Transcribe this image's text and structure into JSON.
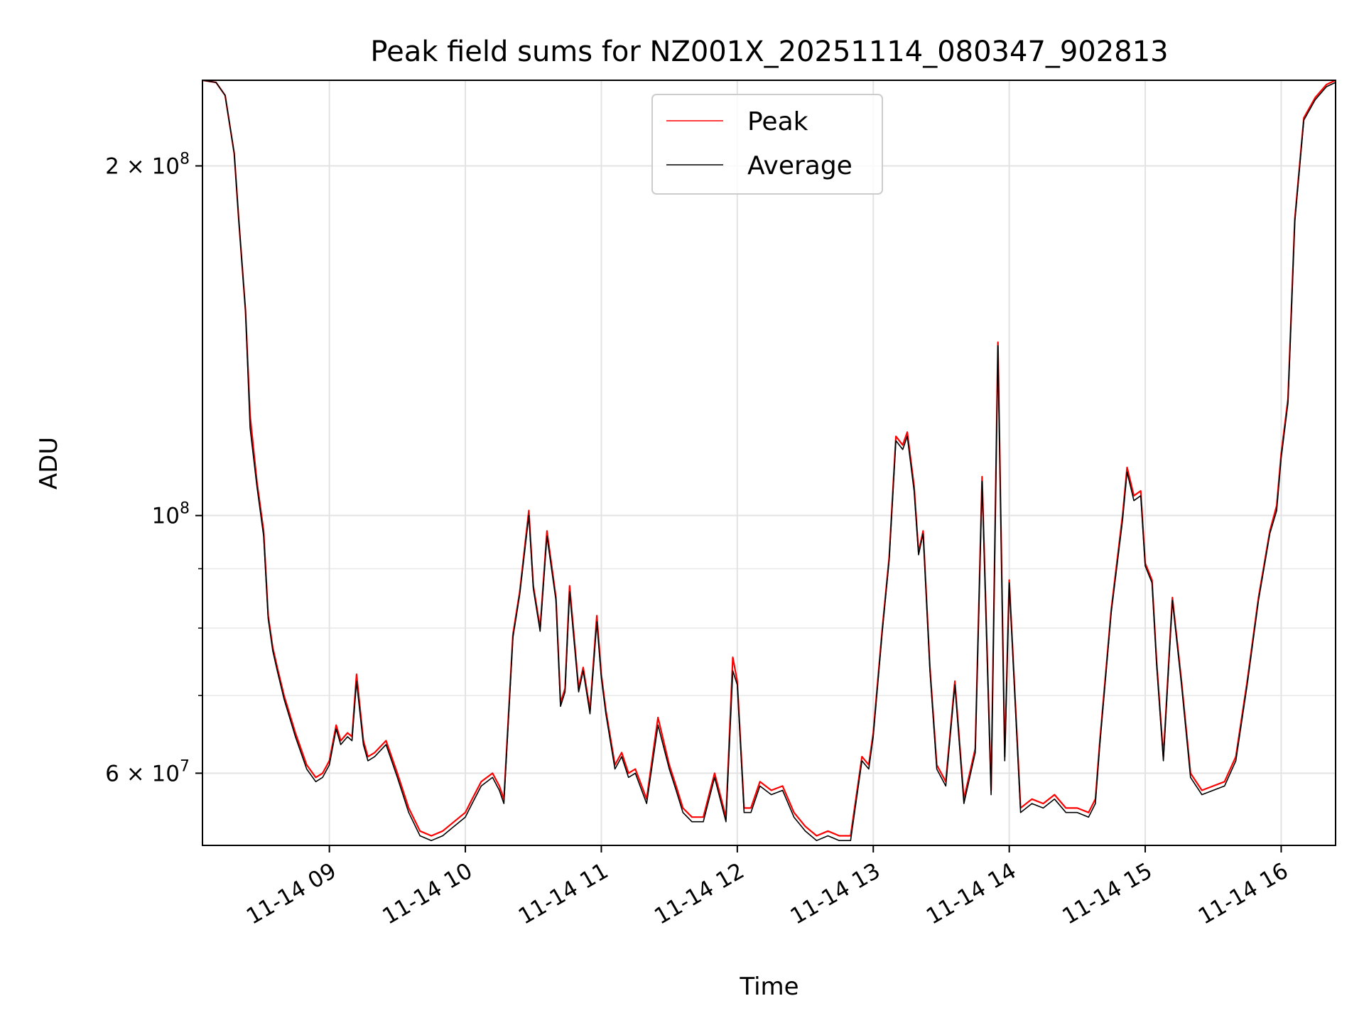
{
  "chart_data": {
    "type": "line",
    "title": "Peak field sums for NZ001X_20251114_080347_902813",
    "xlabel": "Time",
    "ylabel": "ADU",
    "y_scale": "log",
    "ylim": [
      52000000,
      237000000
    ],
    "xlim": [
      "2025-11-14 08:04",
      "2025-11-14 16:24"
    ],
    "x_ticks": [
      "11-14 09",
      "11-14 10",
      "11-14 11",
      "11-14 12",
      "11-14 13",
      "11-14 14",
      "11-14 15",
      "11-14 16"
    ],
    "x_tick_times": [
      "2025-11-14 09:00",
      "2025-11-14 10:00",
      "2025-11-14 11:00",
      "2025-11-14 12:00",
      "2025-11-14 13:00",
      "2025-11-14 14:00",
      "2025-11-14 15:00",
      "2025-11-14 16:00"
    ],
    "y_major_ticks": [
      {
        "value": 60000000,
        "label": "6 × 10",
        "exp": "7"
      },
      {
        "value": 100000000,
        "label": "10",
        "exp": "8"
      },
      {
        "value": 200000000,
        "label": "2 × 10",
        "exp": "8"
      }
    ],
    "y_minor_ticks": [
      70000000,
      80000000,
      90000000
    ],
    "grid": true,
    "legend_position": "top-center",
    "series": [
      {
        "name": "Peak",
        "color": "#ff0000",
        "x": [
          "08:04",
          "08:10",
          "08:14",
          "08:18",
          "08:20",
          "08:23",
          "08:25",
          "08:28",
          "08:31",
          "08:33",
          "08:35",
          "08:37",
          "08:40",
          "08:45",
          "08:50",
          "08:54",
          "08:57",
          "09:00",
          "09:03",
          "09:05",
          "09:08",
          "09:10",
          "09:12",
          "09:15",
          "09:17",
          "09:20",
          "09:25",
          "09:30",
          "09:35",
          "09:40",
          "09:45",
          "09:50",
          "09:55",
          "10:00",
          "10:03",
          "10:07",
          "10:12",
          "10:15",
          "10:17",
          "10:21",
          "10:24",
          "10:28",
          "10:30",
          "10:33",
          "10:36",
          "10:40",
          "10:42",
          "10:44",
          "10:46",
          "10:50",
          "10:52",
          "10:55",
          "10:58",
          "11:00",
          "11:02",
          "11:06",
          "11:09",
          "11:12",
          "11:15",
          "11:20",
          "11:25",
          "11:30",
          "11:33",
          "11:36",
          "11:40",
          "11:45",
          "11:50",
          "11:55",
          "11:58",
          "12:00",
          "12:03",
          "12:06",
          "12:10",
          "12:15",
          "12:20",
          "12:25",
          "12:30",
          "12:35",
          "12:40",
          "12:45",
          "12:50",
          "12:55",
          "12:58",
          "13:00",
          "13:04",
          "13:07",
          "13:10",
          "13:13",
          "13:15",
          "13:18",
          "13:20",
          "13:22",
          "13:25",
          "13:28",
          "13:32",
          "13:36",
          "13:40",
          "13:45",
          "13:48",
          "13:52",
          "13:55",
          "13:58",
          "14:00",
          "14:05",
          "14:10",
          "14:15",
          "14:20",
          "14:25",
          "14:30",
          "14:35",
          "14:38",
          "14:40",
          "14:45",
          "14:50",
          "14:52",
          "14:55",
          "14:58",
          "15:00",
          "15:03",
          "15:05",
          "15:08",
          "15:12",
          "15:16",
          "15:20",
          "15:25",
          "15:30",
          "15:35",
          "15:40",
          "15:45",
          "15:50",
          "15:55",
          "15:58",
          "16:00",
          "16:03",
          "16:06",
          "16:10",
          "16:15",
          "16:20",
          "16:24"
        ],
        "values": [
          237000000,
          236000000,
          230000000,
          205000000,
          180000000,
          150000000,
          122000000,
          107000000,
          97000000,
          82000000,
          77000000,
          74000000,
          70000000,
          65000000,
          61000000,
          59500000,
          60000000,
          61500000,
          66000000,
          64000000,
          65000000,
          64500000,
          73000000,
          64000000,
          62000000,
          62500000,
          64000000,
          60000000,
          56000000,
          53500000,
          53000000,
          53500000,
          54500000,
          55500000,
          57000000,
          59000000,
          60000000,
          58500000,
          57000000,
          79000000,
          86000000,
          101000000,
          87000000,
          80000000,
          97000000,
          85000000,
          69000000,
          71000000,
          87000000,
          71000000,
          74000000,
          68000000,
          82000000,
          73000000,
          68000000,
          61000000,
          62500000,
          60000000,
          60500000,
          57000000,
          67000000,
          61000000,
          58500000,
          56000000,
          55000000,
          55000000,
          60000000,
          55000000,
          75500000,
          72000000,
          56000000,
          56000000,
          59000000,
          58000000,
          58500000,
          55500000,
          54000000,
          53000000,
          53500000,
          53000000,
          53000000,
          62000000,
          61000000,
          65000000,
          80000000,
          92000000,
          117000000,
          115000000,
          118000000,
          106000000,
          93000000,
          97000000,
          74000000,
          61000000,
          59000000,
          72000000,
          57000000,
          63000000,
          108000000,
          58000000,
          141000000,
          62000000,
          88000000,
          56000000,
          57000000,
          56500000,
          57500000,
          56000000,
          56000000,
          55500000,
          57000000,
          64000000,
          83000000,
          100000000,
          110000000,
          104000000,
          105000000,
          91000000,
          88000000,
          75000000,
          62000000,
          85000000,
          72000000,
          60000000,
          58000000,
          58500000,
          59000000,
          62000000,
          72000000,
          85000000,
          97000000,
          102000000,
          113000000,
          126000000,
          180000000,
          220000000,
          229000000,
          235000000,
          237000000
        ]
      },
      {
        "name": "Average",
        "color": "#000000",
        "x": [
          "08:04",
          "08:10",
          "08:14",
          "08:18",
          "08:20",
          "08:23",
          "08:25",
          "08:28",
          "08:31",
          "08:33",
          "08:35",
          "08:37",
          "08:40",
          "08:45",
          "08:50",
          "08:54",
          "08:57",
          "09:00",
          "09:03",
          "09:05",
          "09:08",
          "09:10",
          "09:12",
          "09:15",
          "09:17",
          "09:20",
          "09:25",
          "09:30",
          "09:35",
          "09:40",
          "09:45",
          "09:50",
          "09:55",
          "10:00",
          "10:03",
          "10:07",
          "10:12",
          "10:15",
          "10:17",
          "10:21",
          "10:24",
          "10:28",
          "10:30",
          "10:33",
          "10:36",
          "10:40",
          "10:42",
          "10:44",
          "10:46",
          "10:50",
          "10:52",
          "10:55",
          "10:58",
          "11:00",
          "11:02",
          "11:06",
          "11:09",
          "11:12",
          "11:15",
          "11:20",
          "11:25",
          "11:30",
          "11:33",
          "11:36",
          "11:40",
          "11:45",
          "11:50",
          "11:55",
          "11:58",
          "12:00",
          "12:03",
          "12:06",
          "12:10",
          "12:15",
          "12:20",
          "12:25",
          "12:30",
          "12:35",
          "12:40",
          "12:45",
          "12:50",
          "12:55",
          "12:58",
          "13:00",
          "13:04",
          "13:07",
          "13:10",
          "13:13",
          "13:15",
          "13:18",
          "13:20",
          "13:22",
          "13:25",
          "13:28",
          "13:32",
          "13:36",
          "13:40",
          "13:45",
          "13:48",
          "13:52",
          "13:55",
          "13:58",
          "14:00",
          "14:05",
          "14:10",
          "14:15",
          "14:20",
          "14:25",
          "14:30",
          "14:35",
          "14:38",
          "14:40",
          "14:45",
          "14:50",
          "14:52",
          "14:55",
          "14:58",
          "15:00",
          "15:03",
          "15:05",
          "15:08",
          "15:12",
          "15:16",
          "15:20",
          "15:25",
          "15:30",
          "15:35",
          "15:40",
          "15:45",
          "15:50",
          "15:55",
          "15:58",
          "16:00",
          "16:03",
          "16:06",
          "16:10",
          "16:15",
          "16:20",
          "16:24"
        ],
        "values": [
          237000000,
          236000000,
          230000000,
          205000000,
          180000000,
          150000000,
          119000000,
          106000000,
          96000000,
          81500000,
          76500000,
          73500000,
          69500000,
          64500000,
          60500000,
          59000000,
          59500000,
          61000000,
          65500000,
          63500000,
          64500000,
          64000000,
          72000000,
          63500000,
          61500000,
          62000000,
          63500000,
          59500000,
          55500000,
          53000000,
          52500000,
          53000000,
          54000000,
          55000000,
          56500000,
          58500000,
          59500000,
          58000000,
          56500000,
          78500000,
          85500000,
          100000000,
          86500000,
          79500000,
          96000000,
          84500000,
          68500000,
          70500000,
          86000000,
          70500000,
          73500000,
          67500000,
          81000000,
          72500000,
          67500000,
          60500000,
          62000000,
          59500000,
          60000000,
          56500000,
          66000000,
          60500000,
          58000000,
          55500000,
          54500000,
          54500000,
          59500000,
          54500000,
          73500000,
          71500000,
          55500000,
          55500000,
          58500000,
          57500000,
          58000000,
          55000000,
          53500000,
          52500000,
          53000000,
          52500000,
          52500000,
          61500000,
          60500000,
          64500000,
          79500000,
          91500000,
          116000000,
          114000000,
          117000000,
          105000000,
          92500000,
          96500000,
          73500000,
          60500000,
          58500000,
          71500000,
          56500000,
          62500000,
          107000000,
          57500000,
          140000000,
          61500000,
          87500000,
          55500000,
          56500000,
          56000000,
          57000000,
          55500000,
          55500000,
          55000000,
          56500000,
          63500000,
          82500000,
          99000000,
          109000000,
          103000000,
          104000000,
          90500000,
          87500000,
          74500000,
          61500000,
          84500000,
          71500000,
          59500000,
          57500000,
          58000000,
          58500000,
          61500000,
          71500000,
          84500000,
          96500000,
          101000000,
          112000000,
          125000000,
          179000000,
          219000000,
          228000000,
          234000000,
          236000000
        ]
      }
    ]
  }
}
